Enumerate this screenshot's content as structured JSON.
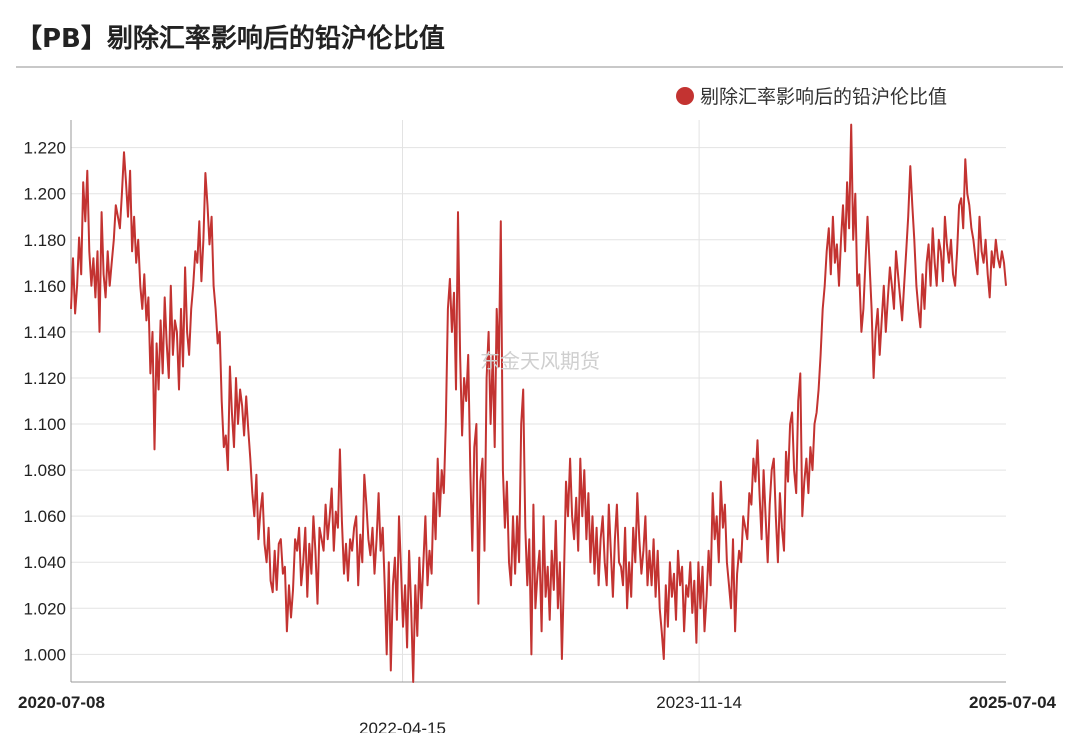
{
  "title": "【PB】剔除汇率影响后的铅沪伦比值",
  "watermark": "东金天风期货",
  "chart_data": {
    "type": "line",
    "series": [
      {
        "name": "剔除汇率影响后的铅沪伦比值",
        "color": "#c33331",
        "values": [
          1.15,
          1.172,
          1.148,
          1.16,
          1.181,
          1.165,
          1.205,
          1.188,
          1.21,
          1.175,
          1.16,
          1.172,
          1.155,
          1.175,
          1.14,
          1.192,
          1.165,
          1.155,
          1.175,
          1.16,
          1.17,
          1.18,
          1.195,
          1.19,
          1.185,
          1.2,
          1.218,
          1.205,
          1.19,
          1.21,
          1.175,
          1.19,
          1.17,
          1.18,
          1.16,
          1.15,
          1.165,
          1.145,
          1.155,
          1.122,
          1.14,
          1.089,
          1.135,
          1.115,
          1.145,
          1.122,
          1.155,
          1.135,
          1.12,
          1.16,
          1.13,
          1.145,
          1.14,
          1.115,
          1.15,
          1.125,
          1.168,
          1.14,
          1.13,
          1.15,
          1.16,
          1.175,
          1.17,
          1.188,
          1.162,
          1.18,
          1.209,
          1.195,
          1.178,
          1.19,
          1.16,
          1.15,
          1.135,
          1.14,
          1.11,
          1.09,
          1.095,
          1.08,
          1.125,
          1.105,
          1.09,
          1.12,
          1.1,
          1.115,
          1.108,
          1.095,
          1.112,
          1.098,
          1.085,
          1.07,
          1.06,
          1.078,
          1.05,
          1.062,
          1.07,
          1.048,
          1.04,
          1.055,
          1.032,
          1.027,
          1.045,
          1.028,
          1.048,
          1.05,
          1.035,
          1.038,
          1.01,
          1.03,
          1.016,
          1.028,
          1.05,
          1.045,
          1.055,
          1.03,
          1.04,
          1.055,
          1.025,
          1.048,
          1.035,
          1.06,
          1.045,
          1.022,
          1.055,
          1.05,
          1.045,
          1.065,
          1.05,
          1.06,
          1.072,
          1.045,
          1.062,
          1.055,
          1.089,
          1.058,
          1.035,
          1.048,
          1.032,
          1.05,
          1.045,
          1.055,
          1.06,
          1.03,
          1.052,
          1.04,
          1.078,
          1.065,
          1.05,
          1.043,
          1.055,
          1.035,
          1.05,
          1.07,
          1.045,
          1.055,
          1.03,
          1.0,
          1.04,
          0.993,
          1.03,
          1.042,
          1.015,
          1.06,
          1.037,
          1.012,
          1.03,
          1.003,
          1.045,
          1.02,
          0.988,
          1.03,
          1.008,
          1.042,
          1.02,
          1.04,
          1.06,
          1.03,
          1.045,
          1.035,
          1.07,
          1.05,
          1.085,
          1.06,
          1.08,
          1.07,
          1.1,
          1.15,
          1.163,
          1.14,
          1.157,
          1.115,
          1.192,
          1.13,
          1.095,
          1.12,
          1.11,
          1.13,
          1.08,
          1.045,
          1.09,
          1.1,
          1.022,
          1.075,
          1.085,
          1.045,
          1.12,
          1.14,
          1.1,
          1.13,
          1.09,
          1.15,
          1.125,
          1.188,
          1.08,
          1.055,
          1.075,
          1.04,
          1.03,
          1.06,
          1.035,
          1.06,
          1.04,
          1.1,
          1.115,
          1.055,
          1.03,
          1.05,
          1.0,
          1.065,
          1.02,
          1.035,
          1.045,
          1.01,
          1.06,
          1.025,
          1.038,
          1.015,
          1.045,
          1.028,
          1.058,
          1.02,
          1.04,
          0.998,
          1.035,
          1.075,
          1.06,
          1.085,
          1.06,
          1.05,
          1.068,
          1.045,
          1.085,
          1.06,
          1.08,
          1.05,
          1.07,
          1.04,
          1.06,
          1.035,
          1.055,
          1.03,
          1.05,
          1.06,
          1.04,
          1.03,
          1.065,
          1.045,
          1.025,
          1.05,
          1.065,
          1.04,
          1.038,
          1.03,
          1.055,
          1.02,
          1.04,
          1.025,
          1.055,
          1.04,
          1.07,
          1.05,
          1.035,
          1.045,
          1.06,
          1.03,
          1.045,
          1.03,
          1.05,
          1.025,
          1.045,
          1.02,
          1.01,
          0.998,
          1.03,
          1.012,
          1.04,
          1.025,
          1.035,
          1.015,
          1.045,
          1.03,
          1.038,
          1.01,
          1.03,
          1.025,
          1.04,
          1.018,
          1.032,
          1.005,
          1.04,
          1.02,
          1.038,
          1.01,
          1.025,
          1.045,
          1.03,
          1.07,
          1.05,
          1.06,
          1.04,
          1.075,
          1.055,
          1.065,
          1.04,
          1.03,
          1.02,
          1.05,
          1.01,
          1.035,
          1.045,
          1.04,
          1.06,
          1.055,
          1.05,
          1.07,
          1.065,
          1.085,
          1.075,
          1.093,
          1.07,
          1.05,
          1.08,
          1.06,
          1.04,
          1.065,
          1.08,
          1.085,
          1.06,
          1.04,
          1.07,
          1.055,
          1.045,
          1.088,
          1.075,
          1.1,
          1.105,
          1.08,
          1.07,
          1.11,
          1.122,
          1.06,
          1.075,
          1.085,
          1.07,
          1.09,
          1.08,
          1.1,
          1.105,
          1.115,
          1.13,
          1.15,
          1.16,
          1.175,
          1.185,
          1.165,
          1.19,
          1.17,
          1.178,
          1.16,
          1.18,
          1.195,
          1.175,
          1.205,
          1.185,
          1.23,
          1.18,
          1.2,
          1.16,
          1.165,
          1.14,
          1.15,
          1.17,
          1.19,
          1.17,
          1.15,
          1.12,
          1.14,
          1.15,
          1.13,
          1.145,
          1.16,
          1.14,
          1.155,
          1.168,
          1.16,
          1.15,
          1.175,
          1.165,
          1.155,
          1.145,
          1.16,
          1.175,
          1.19,
          1.212,
          1.195,
          1.18,
          1.16,
          1.15,
          1.142,
          1.165,
          1.15,
          1.17,
          1.178,
          1.16,
          1.185,
          1.17,
          1.16,
          1.18,
          1.175,
          1.162,
          1.19,
          1.178,
          1.17,
          1.18,
          1.165,
          1.16,
          1.175,
          1.195,
          1.198,
          1.185,
          1.215,
          1.2,
          1.195,
          1.185,
          1.18,
          1.172,
          1.165,
          1.19,
          1.175,
          1.17,
          1.18,
          1.165,
          1.155,
          1.175,
          1.168,
          1.18,
          1.172,
          1.168,
          1.175,
          1.17,
          1.16
        ]
      }
    ],
    "ylim": [
      0.988,
      1.232
    ],
    "yticks": [
      "1.220",
      "1.200",
      "1.180",
      "1.160",
      "1.140",
      "1.120",
      "1.100",
      "1.080",
      "1.060",
      "1.040",
      "1.020",
      "1.000"
    ],
    "ytick_values": [
      1.22,
      1.2,
      1.18,
      1.16,
      1.14,
      1.12,
      1.1,
      1.08,
      1.06,
      1.04,
      1.02,
      1.0
    ],
    "x_start": "2020-07-08",
    "x_end": "2025-07-04",
    "xticks": [
      {
        "label": "2020-07-08",
        "bold": true
      },
      {
        "label": "2022-04-15",
        "bold": false
      },
      {
        "label": "2023-11-14",
        "bold": false
      },
      {
        "label": "2025-07-04",
        "bold": true
      }
    ],
    "grid": true,
    "legend_position": "top-right"
  }
}
